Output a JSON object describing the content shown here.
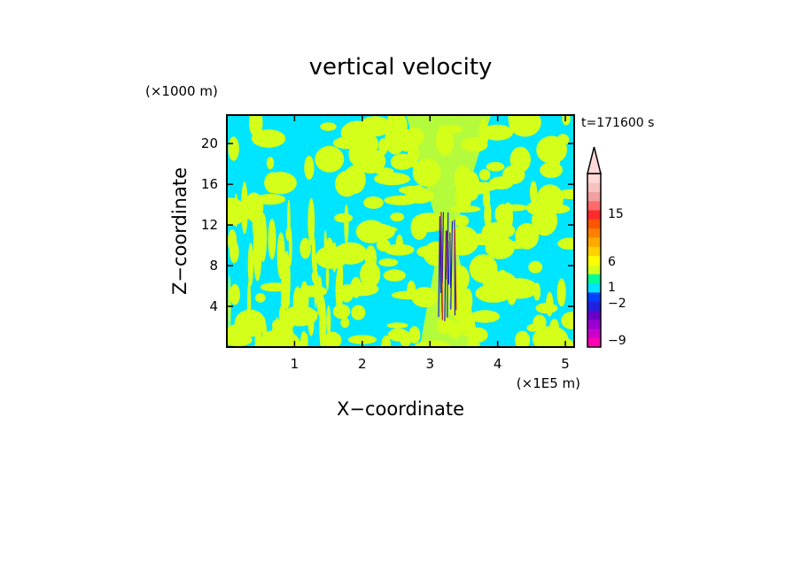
{
  "chart_data": {
    "type": "heatmap",
    "title": "vertical velocity",
    "xlabel": "X−coordinate",
    "ylabel": "Z−coordinate",
    "x_unit": "(×1E5 m)",
    "y_unit": "(×1000 m)",
    "time_label": "t=171600 s",
    "xlim": [
      0,
      5.13
    ],
    "ylim": [
      0,
      22.8
    ],
    "x_ticks": [
      1,
      2,
      3,
      4,
      5
    ],
    "x_tick_labels": [
      "1",
      "2",
      "3",
      "4",
      "5"
    ],
    "y_ticks": [
      4,
      8,
      12,
      16,
      20
    ],
    "y_tick_labels": [
      "4",
      "8",
      "12",
      "16",
      "20"
    ],
    "background_color": "#00e5ff",
    "field_colors": {
      "weak_updraft": "#d4ff1a",
      "downdraft_core": "#1e1ecc",
      "updraft_core": "#c8201a"
    },
    "colorbar": {
      "extend_top": true,
      "labels": [
        {
          "value": 15,
          "text": "15"
        },
        {
          "value": 6,
          "text": "6"
        },
        {
          "value": 1,
          "text": "1"
        },
        {
          "value": -2,
          "text": "−2"
        },
        {
          "value": -9,
          "text": "−9"
        }
      ],
      "bins": [
        {
          "color": "#ff00b4"
        },
        {
          "color": "#cc00cc"
        },
        {
          "color": "#9b00d2"
        },
        {
          "color": "#6a00c8"
        },
        {
          "color": "#2020e0"
        },
        {
          "color": "#0040ff"
        },
        {
          "color": "#00e5ff"
        },
        {
          "color": "#00ff99"
        },
        {
          "color": "#d4ff1a"
        },
        {
          "color": "#ffff00"
        },
        {
          "color": "#ffd200"
        },
        {
          "color": "#ffaa00"
        },
        {
          "color": "#ff8000"
        },
        {
          "color": "#ff5500"
        },
        {
          "color": "#ff2a2a"
        },
        {
          "color": "#ff6a6a"
        },
        {
          "color": "#f0a0a0"
        },
        {
          "color": "#f8c0c0"
        },
        {
          "color": "#ffd8d8"
        }
      ]
    }
  }
}
